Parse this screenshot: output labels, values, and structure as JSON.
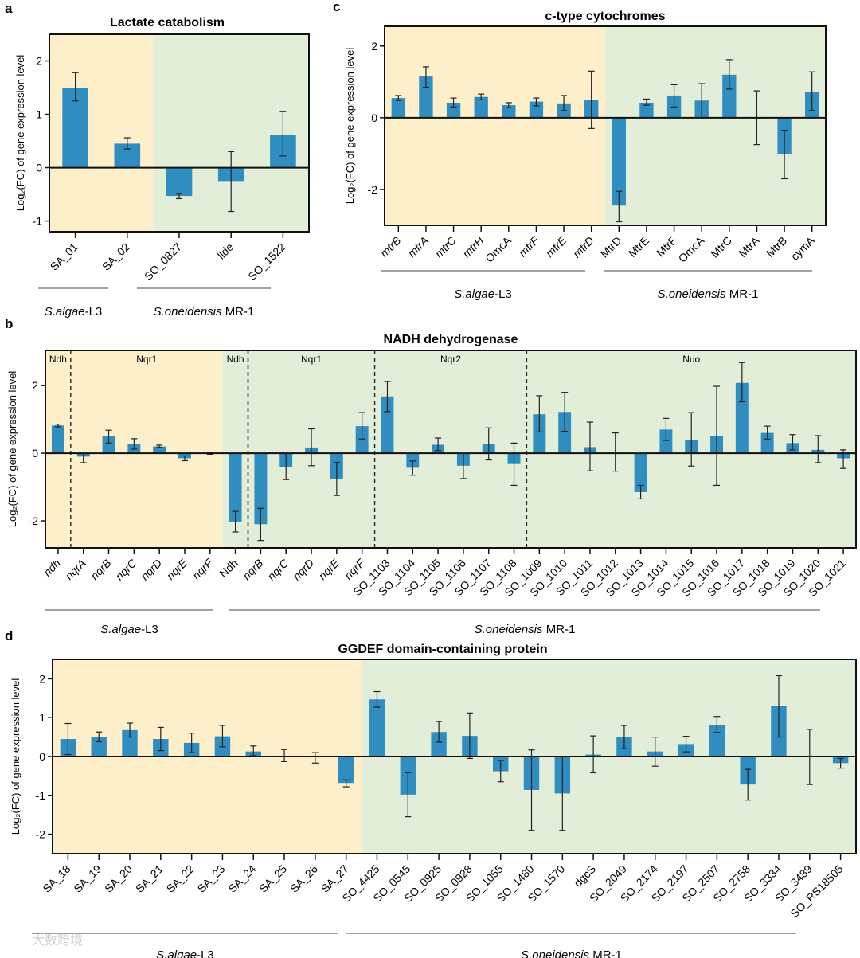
{
  "chart_data": [
    {
      "id": "a",
      "type": "bar",
      "panel_letter": "a",
      "title": "Lactate catabolism",
      "ylabel": "Log₂(FC) of gene expression level",
      "xlabel": "",
      "ylim": [
        -1.2,
        2.5
      ],
      "yticks": [
        -1,
        0,
        1,
        2
      ],
      "categories": [
        "SA_01",
        "SA_02",
        "SO_0827",
        "llde",
        "SO_1522"
      ],
      "values": [
        1.5,
        0.45,
        -0.53,
        -0.25,
        0.62
      ],
      "err_low": [
        1.25,
        0.35,
        -0.58,
        -0.82,
        0.22
      ],
      "err_high": [
        1.78,
        0.56,
        -0.48,
        0.3,
        1.05
      ],
      "groups": [
        {
          "label_italic": "S.algae",
          "label_rest": "-L3",
          "start": 0,
          "end": 1
        },
        {
          "label_italic": "S.oneidensis",
          "label_rest": " MR-1",
          "start": 2,
          "end": 4
        }
      ],
      "sections": []
    },
    {
      "id": "c",
      "type": "bar",
      "panel_letter": "c",
      "title": "c-type cytochromes",
      "ylabel": "Log₂(FC) of gene expression level",
      "xlabel": "",
      "ylim": [
        -3.0,
        2.55
      ],
      "yticks": [
        -2,
        0,
        2
      ],
      "categories": [
        "mtrB",
        "mtrA",
        "mtrC",
        "mtrH",
        "OmcA",
        "mtrF",
        "mtrE",
        "mtrD",
        "MtrD",
        "MtrE",
        "MtrF",
        "OmcA",
        "MtrC",
        "MtrA",
        "MtrB",
        "cymA"
      ],
      "values": [
        0.55,
        1.15,
        0.42,
        0.58,
        0.35,
        0.45,
        0.4,
        0.5,
        -2.45,
        0.42,
        0.62,
        0.48,
        1.2,
        0.0,
        -1.02,
        0.72
      ],
      "err_low": [
        0.48,
        0.85,
        0.3,
        0.5,
        0.28,
        0.33,
        0.2,
        -0.3,
        -2.9,
        0.35,
        0.3,
        0.0,
        0.8,
        -0.75,
        -1.7,
        0.2
      ],
      "err_high": [
        0.62,
        1.42,
        0.55,
        0.66,
        0.42,
        0.55,
        0.62,
        1.3,
        -2.05,
        0.52,
        0.92,
        0.95,
        1.62,
        0.75,
        -0.35,
        1.28
      ],
      "groups": [
        {
          "label_italic": "S.algae",
          "label_rest": "-L3",
          "start": 0,
          "end": 7
        },
        {
          "label_italic": "S.oneidensis",
          "label_rest": " MR-1",
          "start": 8,
          "end": 15
        }
      ],
      "sections": []
    },
    {
      "id": "b",
      "type": "bar",
      "panel_letter": "b",
      "title": "NADH  dehydrogenase",
      "ylabel": "Log₂(FC) of gene expression level",
      "xlabel": "",
      "ylim": [
        -2.8,
        3.04
      ],
      "yticks": [
        -2,
        0,
        2
      ],
      "categories": [
        "ndh",
        "nqrA",
        "nqrB",
        "nqrC",
        "nqrD",
        "nqrE",
        "nqrF",
        "Ndh",
        "nqrB",
        "nqrC",
        "nqrD",
        "nqrE",
        "nqrF",
        "SO_1103",
        "SO_1104",
        "SO_1105",
        "SO_1106",
        "SO_1107",
        "SO_1108",
        "SO_1009",
        "SO_1010",
        "SO_1011",
        "SO_1012",
        "SO_1013",
        "SO_1014",
        "SO_1015",
        "SO_1016",
        "SO_1017",
        "SO_1018",
        "SO_1019",
        "SO_1020",
        "SO_1021"
      ],
      "values": [
        0.82,
        -0.1,
        0.5,
        0.27,
        0.2,
        -0.15,
        -0.01,
        -2.02,
        -2.1,
        -0.4,
        0.17,
        -0.75,
        0.8,
        1.68,
        -0.43,
        0.25,
        -0.37,
        0.27,
        -0.32,
        1.15,
        1.22,
        0.18,
        0.02,
        -1.15,
        0.7,
        0.4,
        0.5,
        2.08,
        0.6,
        0.3,
        0.1,
        -0.15
      ],
      "err_low": [
        0.78,
        -0.28,
        0.3,
        0.12,
        0.17,
        -0.22,
        -0.03,
        -2.33,
        -2.58,
        -0.78,
        -0.37,
        -1.25,
        0.42,
        1.23,
        -0.65,
        0.08,
        -0.75,
        -0.2,
        -0.95,
        0.63,
        0.65,
        -0.52,
        -0.53,
        -1.35,
        0.38,
        -0.38,
        -0.95,
        1.52,
        0.42,
        0.1,
        -0.28,
        -0.45
      ],
      "err_high": [
        0.86,
        0.0,
        0.68,
        0.43,
        0.24,
        -0.08,
        0.01,
        -1.72,
        -1.63,
        0.0,
        0.72,
        -0.27,
        1.2,
        2.12,
        -0.23,
        0.45,
        0.0,
        0.75,
        0.3,
        1.7,
        1.8,
        0.92,
        0.6,
        -0.95,
        1.03,
        1.2,
        1.98,
        2.68,
        0.8,
        0.55,
        0.52,
        0.1
      ],
      "groups": [
        {
          "label_italic": "S.algae",
          "label_rest": "-L3",
          "start": 0,
          "end": 6
        },
        {
          "label_italic": "S.oneidensis",
          "label_rest": " MR-1",
          "start": 7,
          "end": 31
        }
      ],
      "sections": [
        {
          "label": "Ndh",
          "start": 0,
          "end": 0
        },
        {
          "label": "Nqr1",
          "start": 1,
          "end": 6
        },
        {
          "label": "Ndh",
          "start": 7,
          "end": 7
        },
        {
          "label": "Nqr1",
          "start": 8,
          "end": 12
        },
        {
          "label": "Nqr2",
          "start": 13,
          "end": 18
        },
        {
          "label": "Nuo",
          "start": 19,
          "end": 31
        }
      ]
    },
    {
      "id": "d",
      "type": "bar",
      "panel_letter": "d",
      "title": "GGDEF  domain-containing protein",
      "ylabel": "Log₂(FC) of gene expression level",
      "xlabel": "",
      "ylim": [
        -2.5,
        2.5
      ],
      "yticks": [
        -2,
        -1,
        0,
        1,
        2
      ],
      "categories": [
        "SA_18",
        "SA_19",
        "SA_20",
        "SA_21",
        "SA_22",
        "SA_23",
        "SA_24",
        "SA_25",
        "SA_26",
        "SA_27",
        "SO_4425",
        "SO_0545",
        "SO_0925",
        "SO_0928",
        "SO_1055",
        "SO_1480",
        "SO_1570",
        "dgcS",
        "SO_2049",
        "SO_2174",
        "SO_2197",
        "SO_2507",
        "SO_2758",
        "SO_3334",
        "SO_3489",
        "SO_RS18505"
      ],
      "values": [
        0.45,
        0.5,
        0.68,
        0.45,
        0.35,
        0.52,
        0.13,
        0.0,
        0.0,
        -0.68,
        1.47,
        -0.98,
        0.63,
        0.53,
        -0.38,
        -0.86,
        -0.95,
        0.05,
        0.5,
        0.13,
        0.32,
        0.82,
        -0.72,
        1.3,
        0.0,
        -0.17
      ],
      "err_low": [
        0.05,
        0.38,
        0.5,
        0.15,
        0.1,
        0.25,
        0.02,
        -0.13,
        -0.17,
        -0.78,
        1.27,
        -1.55,
        0.37,
        -0.05,
        -0.65,
        -1.9,
        -1.9,
        -0.42,
        0.2,
        -0.25,
        0.12,
        0.62,
        -1.12,
        0.5,
        -0.72,
        -0.3
      ],
      "err_high": [
        0.85,
        0.63,
        0.86,
        0.75,
        0.6,
        0.8,
        0.27,
        0.18,
        0.1,
        -0.6,
        1.67,
        -0.42,
        0.9,
        1.12,
        -0.1,
        0.17,
        0.0,
        0.53,
        0.8,
        0.5,
        0.52,
        1.03,
        -0.33,
        2.08,
        0.7,
        -0.05
      ],
      "groups": [
        {
          "label_italic": "S.algae",
          "label_rest": "-L3",
          "start": 0,
          "end": 9
        },
        {
          "label_italic": "S.oneidensis",
          "label_rest": " MR-1",
          "start": 10,
          "end": 25
        }
      ],
      "sections": []
    }
  ],
  "colors": {
    "bar": "#2f8dc0",
    "salgae_bg": "#fdefc9",
    "soneidensis_bg": "#e2eed8",
    "axis": "#111111"
  },
  "watermark": "大数跨境"
}
